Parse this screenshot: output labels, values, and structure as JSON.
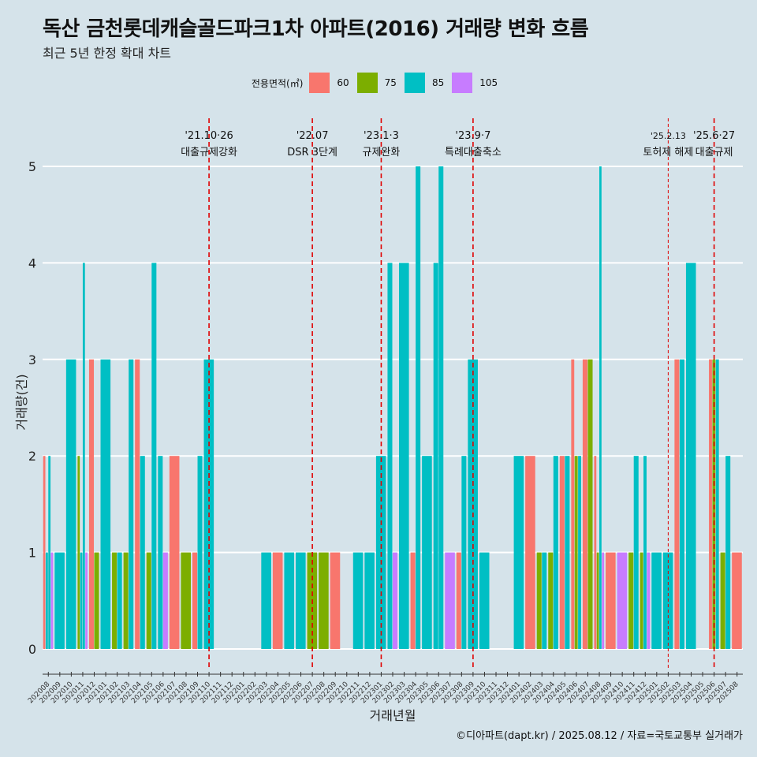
{
  "header": {
    "title": "독산 금천롯데캐슬골드파크1차 아파트(2016) 거래량 변화 흐름",
    "subtitle": "최근 5년 한정 확대 차트"
  },
  "legend": {
    "title": "전용면적(㎡)",
    "items": [
      {
        "label": "60",
        "color": "#F8766D"
      },
      {
        "label": "75",
        "color": "#7CAE00"
      },
      {
        "label": "85",
        "color": "#00BFC4"
      },
      {
        "label": "105",
        "color": "#C77CFF"
      }
    ]
  },
  "caption": "©디아파트(dapt.kr) / 2025.08.12 / 자료=국토교통부 실거래가",
  "chart_data": {
    "type": "bar",
    "xlabel": "거래년월",
    "ylabel": "거래량(건)",
    "ylim": [
      0,
      5
    ],
    "yticks": [
      0,
      1,
      2,
      3,
      4,
      5
    ],
    "grid": true,
    "legend_position": "top",
    "categories": [
      "202008",
      "202009",
      "202010",
      "202011",
      "202012",
      "202101",
      "202102",
      "202103",
      "202104",
      "202105",
      "202106",
      "202107",
      "202108",
      "202109",
      "202110",
      "202111",
      "202112",
      "202201",
      "202202",
      "202203",
      "202204",
      "202205",
      "202206",
      "202207",
      "202208",
      "202209",
      "202210",
      "202211",
      "202212",
      "202301",
      "202302",
      "202303",
      "202304",
      "202305",
      "202306",
      "202307",
      "202308",
      "202309",
      "202310",
      "202311",
      "202312",
      "202401",
      "202402",
      "202403",
      "202404",
      "202405",
      "202406",
      "202407",
      "202408",
      "202409",
      "202410",
      "202411",
      "202412",
      "202501",
      "202502",
      "202503",
      "202504",
      "202505",
      "202506",
      "202507",
      "202508"
    ],
    "series": [
      {
        "name": "60",
        "color": "#F8766D",
        "values": [
          [
            2
          ],
          [],
          [],
          [],
          [
            3
          ],
          [],
          [],
          [],
          [
            3
          ],
          [],
          [],
          [
            2
          ],
          [],
          [
            1
          ],
          [],
          [],
          [],
          [],
          [],
          [],
          [
            1
          ],
          [],
          [],
          [],
          [],
          [
            1
          ],
          [],
          [],
          [],
          [],
          [],
          [],
          [
            1
          ],
          [],
          [],
          [],
          [
            1
          ],
          [],
          [],
          [],
          [],
          [],
          [
            2
          ],
          [],
          [],
          [
            2
          ],
          [
            3
          ],
          [
            3
          ],
          [
            2
          ],
          [
            1
          ],
          [],
          [],
          [],
          [],
          [],
          [
            3
          ],
          [],
          [],
          [
            3
          ],
          [],
          [
            1
          ]
        ]
      },
      {
        "name": "75",
        "color": "#7CAE00",
        "values": [
          [],
          [],
          [],
          [
            2
          ],
          [
            1
          ],
          [],
          [
            1
          ],
          [
            1
          ],
          [],
          [
            1
          ],
          [],
          [],
          [
            1
          ],
          [],
          [],
          [],
          [],
          [],
          [],
          [],
          [],
          [],
          [],
          [
            1
          ],
          [
            1
          ],
          [],
          [],
          [],
          [],
          [],
          [],
          [],
          [],
          [],
          [],
          [],
          [],
          [],
          [],
          [],
          [],
          [],
          [],
          [
            1
          ],
          [
            1
          ],
          [],
          [
            2
          ],
          [
            3
          ],
          [
            1
          ],
          [],
          [],
          [
            1
          ],
          [
            1
          ],
          [],
          [],
          [],
          [],
          [],
          [
            3
          ],
          [
            1
          ],
          []
        ]
      },
      {
        "name": "85",
        "color": "#00BFC4",
        "values": [
          [
            1,
            2
          ],
          [
            1
          ],
          [
            3
          ],
          [
            1,
            4
          ],
          [],
          [
            3
          ],
          [
            1
          ],
          [
            3
          ],
          [
            2
          ],
          [
            4
          ],
          [
            2
          ],
          [],
          [],
          [
            2
          ],
          [
            3
          ],
          [],
          [],
          [],
          [],
          [
            1
          ],
          [],
          [
            1
          ],
          [
            1
          ],
          [],
          [],
          [],
          [],
          [
            1
          ],
          [
            1
          ],
          [
            2
          ],
          [
            4
          ],
          [
            4
          ],
          [
            5
          ],
          [
            2
          ],
          [
            4,
            5
          ],
          [],
          [
            2
          ],
          [
            3
          ],
          [
            1
          ],
          [],
          [],
          [
            2
          ],
          [],
          [
            1
          ],
          [
            2
          ],
          [
            2
          ],
          [
            2
          ],
          [],
          [
            5
          ],
          [],
          [],
          [
            2
          ],
          [
            2
          ],
          [
            1
          ],
          [
            1
          ],
          [
            3
          ],
          [
            4
          ],
          [],
          [
            3
          ],
          [
            2
          ],
          []
        ]
      },
      {
        "name": "105",
        "color": "#C77CFF",
        "values": [
          [
            1
          ],
          [],
          [],
          [
            1
          ],
          [],
          [],
          [],
          [],
          [],
          [],
          [
            1
          ],
          [],
          [],
          [],
          [],
          [],
          [],
          [],
          [],
          [],
          [],
          [],
          [],
          [],
          [],
          [],
          [],
          [],
          [],
          [],
          [
            1
          ],
          [],
          [],
          [],
          [],
          [
            1
          ],
          [],
          [],
          [],
          [],
          [],
          [],
          [],
          [],
          [],
          [],
          [],
          [],
          [
            1
          ],
          [],
          [
            1
          ],
          [],
          [
            1
          ],
          [],
          [],
          [],
          [],
          [],
          [],
          [],
          []
        ]
      }
    ],
    "annotations": [
      {
        "date_label": "'21.10·26",
        "text": "대출규제강화",
        "at": "202110"
      },
      {
        "date_label": "'22.07",
        "text": "DSR 3단계",
        "at": "202207"
      },
      {
        "date_label": "'23.1·3",
        "text": "규제완화",
        "at": "202301"
      },
      {
        "date_label": "'23.9·7",
        "text": "특례대출축소",
        "at": "202309"
      },
      {
        "date_label": "'25.2.13",
        "text": "토허제 해제",
        "at": "202502"
      },
      {
        "date_label": "'25.6·27",
        "text": "대출규제",
        "at": "202506"
      }
    ]
  }
}
